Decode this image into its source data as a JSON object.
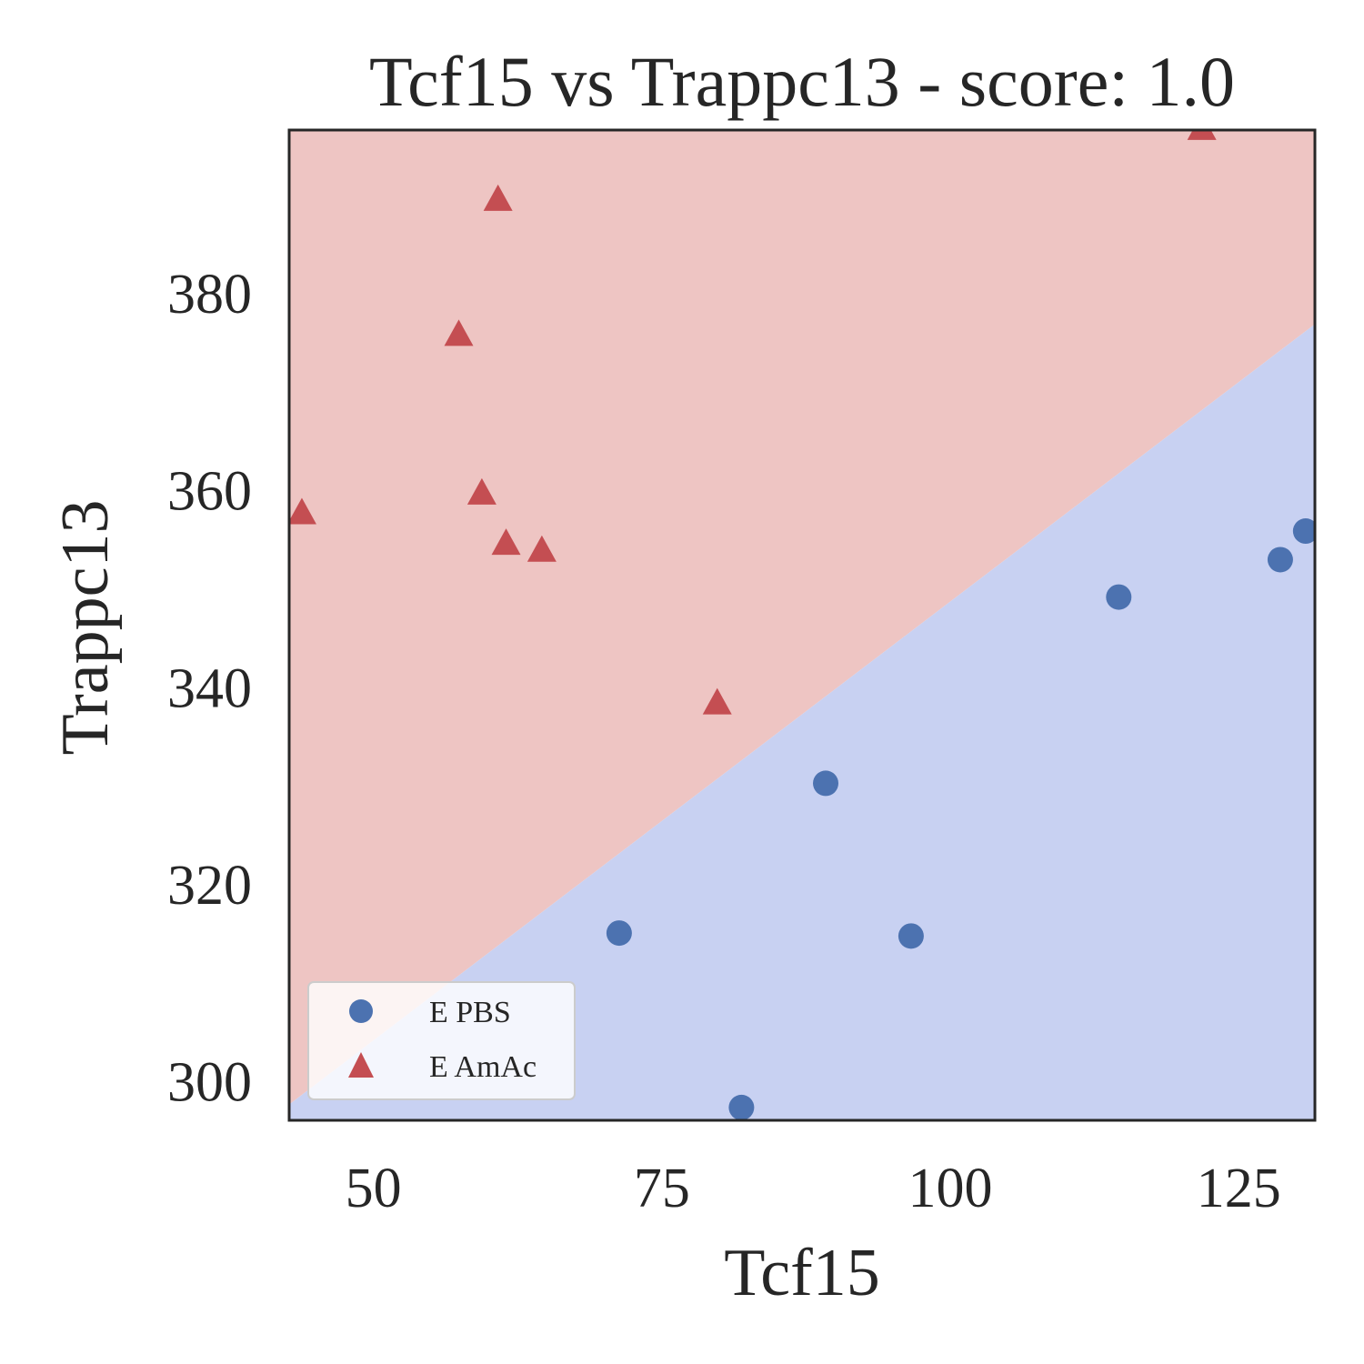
{
  "chart_data": {
    "type": "scatter",
    "title": "Tcf15 vs Trappc13 - score: 1.0",
    "xlabel": "Tcf15",
    "ylabel": "Trappc13",
    "xlim": [
      42.7,
      131.6
    ],
    "ylim": [
      296.1,
      396.6
    ],
    "xticks": [
      50,
      75,
      100,
      125
    ],
    "yticks": [
      300,
      320,
      340,
      360,
      380
    ],
    "grid": false,
    "legend_position": "lower-left",
    "decision_boundary": {
      "points": [
        [
          42.7,
          297.7
        ],
        [
          131.6,
          376.9
        ]
      ],
      "region_above_color": "#eec5c3",
      "region_below_color": "#c8d1f2"
    },
    "series": [
      {
        "name": "E PBS",
        "marker": "circle",
        "color": "#4c72b0",
        "points": [
          [
            71.3,
            315.1
          ],
          [
            81.9,
            297.4
          ],
          [
            89.2,
            330.3
          ],
          [
            96.6,
            314.8
          ],
          [
            114.6,
            349.2
          ],
          [
            128.6,
            353.0
          ],
          [
            130.8,
            355.9
          ]
        ]
      },
      {
        "name": "E AmAc",
        "marker": "triangle",
        "color": "#c44e52",
        "points": [
          [
            43.8,
            357.7
          ],
          [
            57.4,
            375.8
          ],
          [
            59.4,
            359.7
          ],
          [
            60.8,
            389.5
          ],
          [
            61.5,
            354.6
          ],
          [
            64.6,
            353.9
          ],
          [
            79.8,
            338.4
          ],
          [
            121.8,
            396.7
          ]
        ]
      }
    ]
  }
}
